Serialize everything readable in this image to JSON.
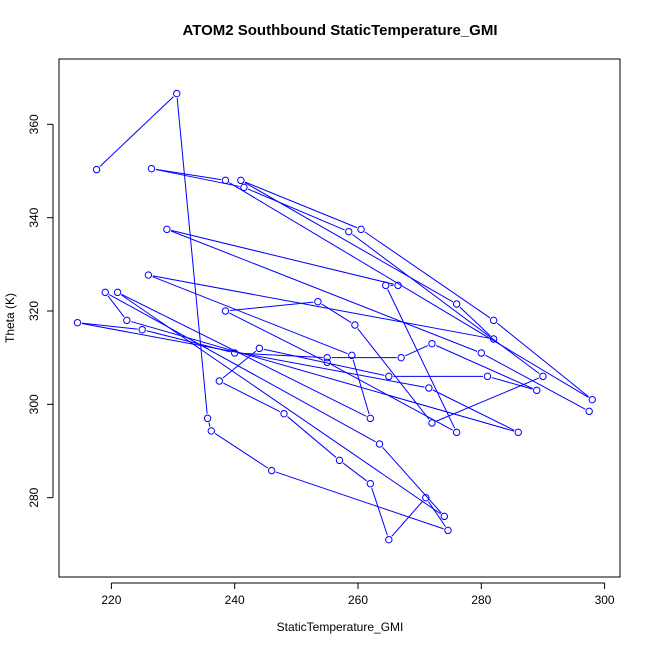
{
  "chart_data": {
    "type": "line",
    "title": "ATOM2 Southbound StaticTemperature_GMI",
    "xlabel": "StaticTemperature_GMI",
    "ylabel": "Theta (K)",
    "xlim": [
      211.5,
      302.5
    ],
    "ylim": [
      263,
      374
    ],
    "xticks": [
      220,
      240,
      260,
      280,
      300
    ],
    "yticks": [
      280,
      300,
      320,
      340,
      360
    ],
    "grid": false,
    "legend": "none",
    "series_color": "#0000ff",
    "marker": "open-circle",
    "series": [
      {
        "name": "",
        "points": [
          [
            217.6,
            350.3
          ],
          [
            230.6,
            366.6
          ],
          [
            235.6,
            297.0
          ],
          [
            236.2,
            294.3
          ],
          [
            246.0,
            285.8
          ],
          [
            274.6,
            273.0
          ],
          [
            271.0,
            280.0
          ],
          [
            265.0,
            271.0
          ],
          [
            262.0,
            283.0
          ],
          [
            257.0,
            288.0
          ],
          [
            248.0,
            298.0
          ],
          [
            237.5,
            305.0
          ],
          [
            244.0,
            312.0
          ],
          [
            265.0,
            306.0
          ],
          [
            281.0,
            306.0
          ],
          [
            289.0,
            303.0
          ],
          [
            272.0,
            313.0
          ],
          [
            267.0,
            310.0
          ],
          [
            255.0,
            310.0
          ],
          [
            240.0,
            311.0
          ],
          [
            225.0,
            316.0
          ],
          [
            214.5,
            317.5
          ],
          [
            271.5,
            303.5
          ],
          [
            286.0,
            294.0
          ],
          [
            222.5,
            318.0
          ],
          [
            219.0,
            324.0
          ],
          [
            263.5,
            291.5
          ],
          [
            274.0,
            276.0
          ],
          [
            221.0,
            324.0
          ],
          [
            262.0,
            297.0
          ],
          [
            259.0,
            310.5
          ],
          [
            226.0,
            327.7
          ],
          [
            282.0,
            314.0
          ],
          [
            276.0,
            321.5
          ],
          [
            241.0,
            348.0
          ],
          [
            260.5,
            337.5
          ],
          [
            282.0,
            318.0
          ],
          [
            298.0,
            301.0
          ],
          [
            238.5,
            348.0
          ],
          [
            226.5,
            350.5
          ],
          [
            241.5,
            346.5
          ],
          [
            258.5,
            337.0
          ],
          [
            290.0,
            306.0
          ],
          [
            272.0,
            296.0
          ],
          [
            259.5,
            317.0
          ],
          [
            253.5,
            322.0
          ],
          [
            238.5,
            320.0
          ],
          [
            255.0,
            309.0
          ],
          [
            276.0,
            294.0
          ],
          [
            264.5,
            325.5
          ],
          [
            266.5,
            325.5
          ],
          [
            229.0,
            337.5
          ],
          [
            280.0,
            311.0
          ],
          [
            297.5,
            298.5
          ]
        ]
      }
    ]
  }
}
